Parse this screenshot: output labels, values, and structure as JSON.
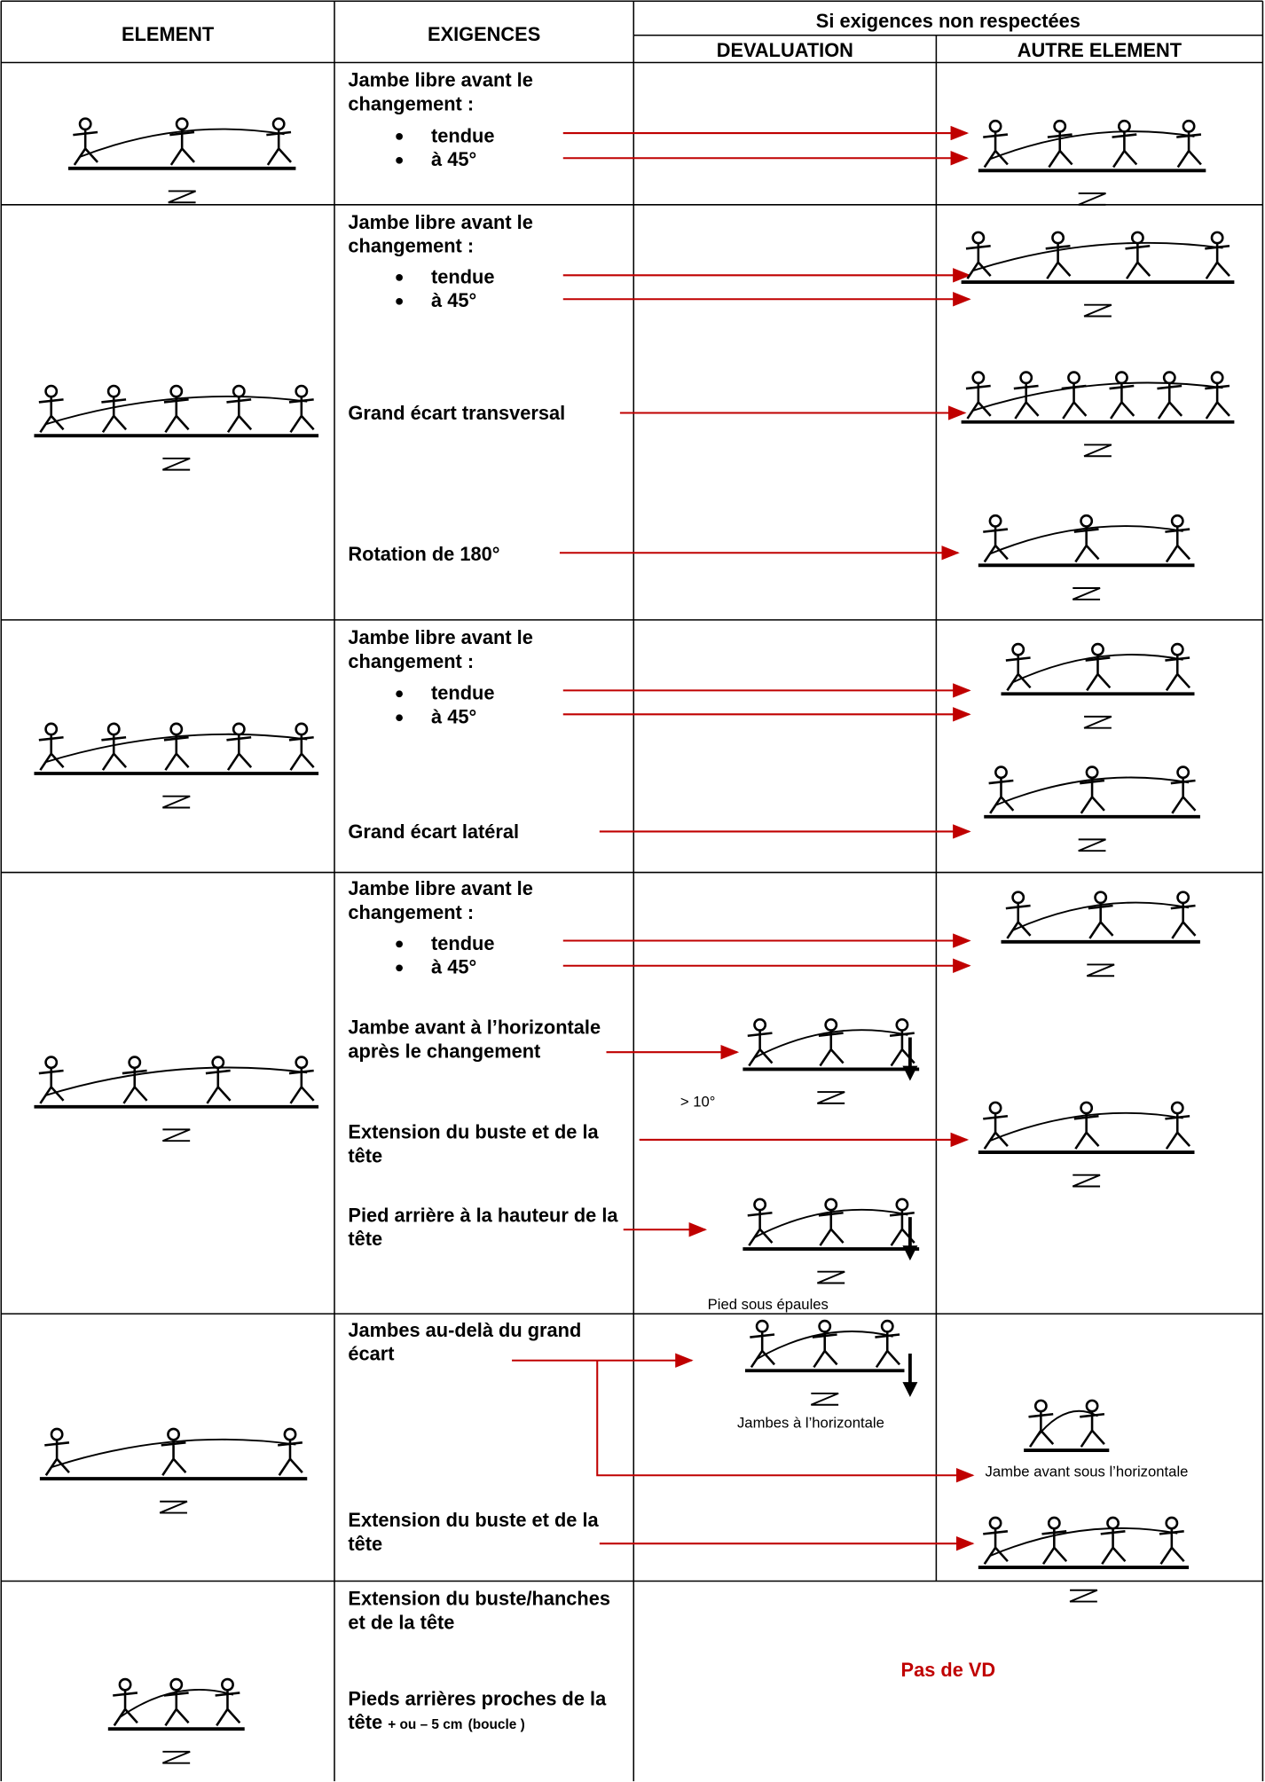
{
  "header": {
    "element": "ELEMENT",
    "exigences": "EXIGENCES",
    "group": "Si exigences non respectées",
    "devaluation": "DEVALUATION",
    "autre": "AUTRE ELEMENT"
  },
  "rows": [
    {
      "exigences": [
        "Jambe libre avant le changement :",
        "tendue",
        "à 45°"
      ]
    },
    {
      "exigences": [
        "Jambe libre avant le changement :",
        "tendue",
        "à 45°",
        "Grand écart transversal",
        "Rotation de 180°"
      ]
    },
    {
      "exigences": [
        "Jambe libre avant le changement :",
        "tendue",
        "à 45°",
        "Grand écart latéral"
      ]
    },
    {
      "exigences": [
        "Jambe libre avant le changement :",
        "tendue",
        "à 45°",
        "Jambe avant à l’horizontale après le changement",
        "Extension du buste et de la tête",
        "Pied arrière à la hauteur de la tête"
      ],
      "notes": [
        "> 10°",
        "Pied sous épaules"
      ]
    },
    {
      "exigences": [
        "Jambes au-delà du grand écart",
        "Extension du buste et de la tête"
      ],
      "notes": [
        "Jambes à l’horizontale",
        "Jambe avant sous l’horizontale"
      ]
    },
    {
      "exigences": [
        "Extension du buste/hanches et de la tête",
        "Pieds arrières proches de la tête",
        "+ ou – 5 cm",
        "(boucle )"
      ],
      "devaluation": "Pas de VD"
    }
  ]
}
